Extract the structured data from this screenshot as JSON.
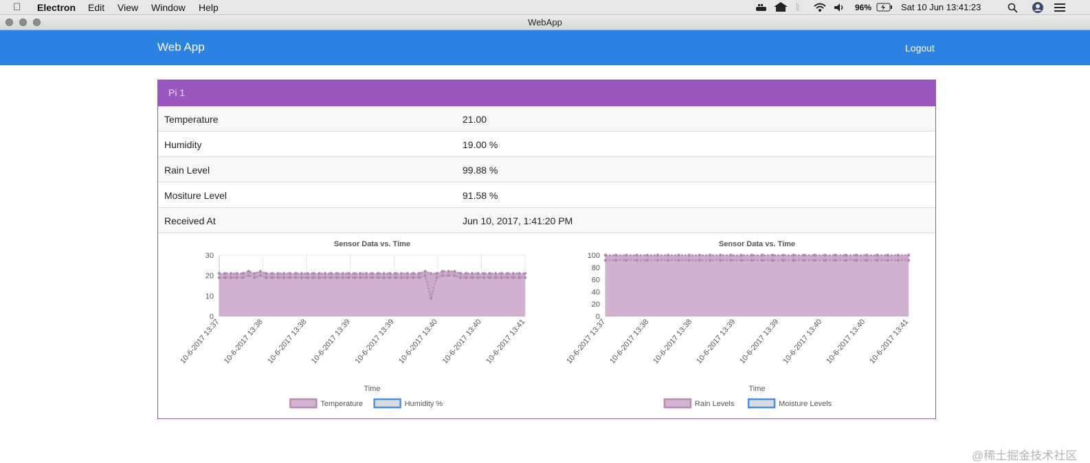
{
  "menubar": {
    "apple_icon": "apple-icon",
    "app_name": "Electron",
    "items": [
      "Edit",
      "View",
      "Window",
      "Help"
    ],
    "battery": "96%",
    "datetime": "Sat 10 Jun  13:41:23"
  },
  "window": {
    "title": "WebApp"
  },
  "navbar": {
    "brand": "Web App",
    "logout": "Logout",
    "color": "#2b82e3"
  },
  "panel": {
    "title": "Pi 1",
    "header_color": "#9a57c0",
    "rows": [
      {
        "label": "Temperature",
        "value": "21.00"
      },
      {
        "label": "Humidity",
        "value": "19.00 %"
      },
      {
        "label": "Rain Level",
        "value": "99.88 %"
      },
      {
        "label": "Mositure Level",
        "value": "91.58 %"
      },
      {
        "label": "Received At",
        "value": "Jun 10, 2017, 1:41:20 PM"
      }
    ]
  },
  "chart_data": [
    {
      "type": "area",
      "title": "Sensor Data vs. Time",
      "xlabel": "Time",
      "ylabel": "",
      "ylim": [
        0,
        30
      ],
      "yticks": [
        0,
        10,
        20,
        30
      ],
      "xtick_labels": [
        "10-6-2017 13:37",
        "10-6-2017 13:38",
        "10-6-2017 13:38",
        "10-6-2017 13:39",
        "10-6-2017 13:39",
        "10-6-2017 13:40",
        "10-6-2017 13:40",
        "10-6-2017 13:41"
      ],
      "legend_position": "bottom",
      "series": [
        {
          "name": "Temperature",
          "color": "#c9a0c6",
          "values": [
            21,
            21,
            21,
            21,
            21,
            22,
            21,
            22,
            21,
            21,
            21,
            21,
            21,
            21,
            21,
            21,
            21,
            21,
            21,
            21,
            21,
            21,
            21,
            21,
            21,
            21,
            21,
            21,
            21,
            21,
            21,
            21,
            21,
            21,
            21,
            22,
            21,
            21,
            22,
            22,
            22,
            21,
            21,
            21,
            21,
            21,
            21,
            21,
            21,
            21,
            21,
            21,
            21
          ]
        },
        {
          "name": "Humidity %",
          "color": "#4a90e2",
          "values": [
            19,
            19,
            19,
            19,
            19,
            20,
            19,
            20,
            19,
            19,
            19,
            19,
            19,
            19,
            19,
            19,
            19,
            19,
            19,
            19,
            19,
            19,
            19,
            19,
            19,
            19,
            19,
            19,
            19,
            19,
            19,
            19,
            19,
            19,
            19,
            20,
            9,
            19,
            20,
            20,
            20,
            19,
            19,
            19,
            19,
            19,
            19,
            19,
            19,
            19,
            19,
            19,
            19
          ]
        }
      ]
    },
    {
      "type": "area",
      "title": "Sensor Data vs. Time",
      "xlabel": "Time",
      "ylabel": "",
      "ylim": [
        0,
        100
      ],
      "yticks": [
        0,
        20,
        40,
        60,
        80,
        100
      ],
      "xtick_labels": [
        "10-6-2017 13:37",
        "10-6-2017 13:38",
        "10-6-2017 13:38",
        "10-6-2017 13:39",
        "10-6-2017 13:39",
        "10-6-2017 13:40",
        "10-6-2017 13:40",
        "10-6-2017 13:41"
      ],
      "legend_position": "bottom",
      "series": [
        {
          "name": "Rain Levels",
          "color": "#c9a0c6",
          "values": [
            99.88,
            99.88,
            99.88,
            99.88,
            99.88,
            99.88,
            99.88,
            99.88,
            99.88,
            99.88,
            99.88,
            99.88,
            99.88,
            99.88,
            99.88,
            99.88,
            99.88,
            99.88,
            99.88,
            99.88,
            99.88,
            99.88,
            99.88,
            99.88,
            99.88,
            99.88,
            99.88,
            99.88,
            99.88,
            99.88
          ]
        },
        {
          "name": "Moisture Levels",
          "color": "#4a90e2",
          "values": [
            91.58,
            91.58,
            91.58,
            91.58,
            91.58,
            91.58,
            91.58,
            91.58,
            91.58,
            91.58,
            91.58,
            91.58,
            91.58,
            91.58,
            91.58,
            91.58,
            91.58,
            91.58,
            91.58,
            91.58,
            91.58,
            91.58,
            91.58,
            91.58,
            91.58,
            91.58,
            91.58,
            91.58,
            91.58,
            91.58
          ]
        }
      ]
    }
  ],
  "watermark": "@稀土掘金技术社区"
}
